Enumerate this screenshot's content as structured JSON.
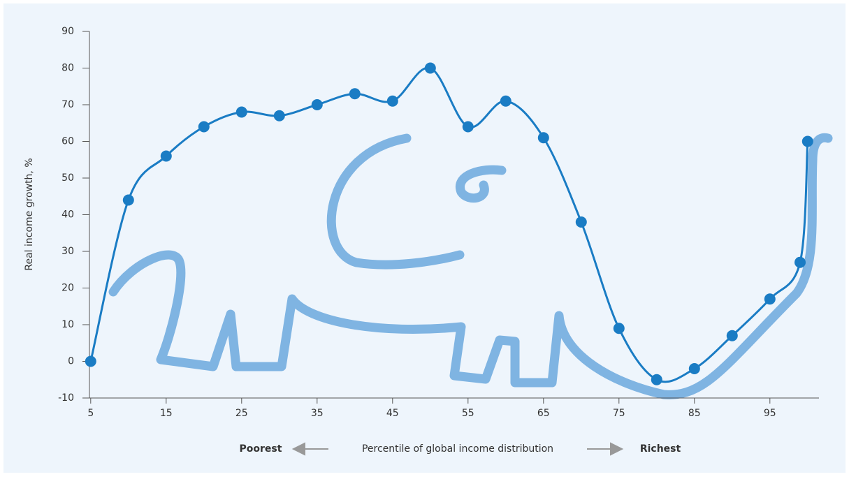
{
  "chart_data": {
    "type": "line",
    "y_label": "Real income growth, %",
    "x_label": "Percentile of global income distribution",
    "x_left_label": "Poorest",
    "x_right_label": "Richest",
    "x": [
      5,
      10,
      15,
      20,
      25,
      30,
      35,
      40,
      45,
      50,
      55,
      60,
      65,
      70,
      75,
      80,
      85,
      90,
      95,
      99,
      100
    ],
    "series": [
      {
        "color": "#1a7cc4",
        "values": [
          0,
          44,
          56,
          64,
          68,
          67,
          70,
          73,
          71,
          80,
          64,
          71,
          61,
          38,
          9,
          -5,
          -2,
          7,
          17,
          27,
          60
        ]
      }
    ],
    "xlim": [
      4,
      101.5
    ],
    "xticks": [
      5,
      15,
      25,
      35,
      45,
      55,
      65,
      75,
      85,
      95
    ],
    "ylim": [
      -10,
      90
    ],
    "yticks": [
      -10,
      0,
      10,
      20,
      30,
      40,
      50,
      60,
      70,
      80,
      90
    ]
  }
}
